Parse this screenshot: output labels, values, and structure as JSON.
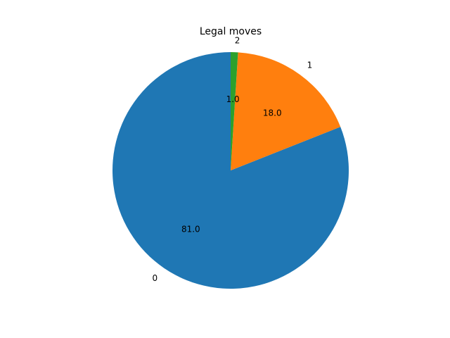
{
  "chart_data": {
    "type": "pie",
    "title": "Legal moves",
    "start_angle_deg": 90,
    "direction": "counterclockwise",
    "slices": [
      {
        "label": "0",
        "value": 81.0,
        "pct_label": "81.0",
        "color": "#1f77b4"
      },
      {
        "label": "1",
        "value": 18.0,
        "pct_label": "18.0",
        "color": "#ff7f0e"
      },
      {
        "label": "2",
        "value": 1.0,
        "pct_label": "1.0",
        "color": "#2ca02c"
      }
    ]
  }
}
